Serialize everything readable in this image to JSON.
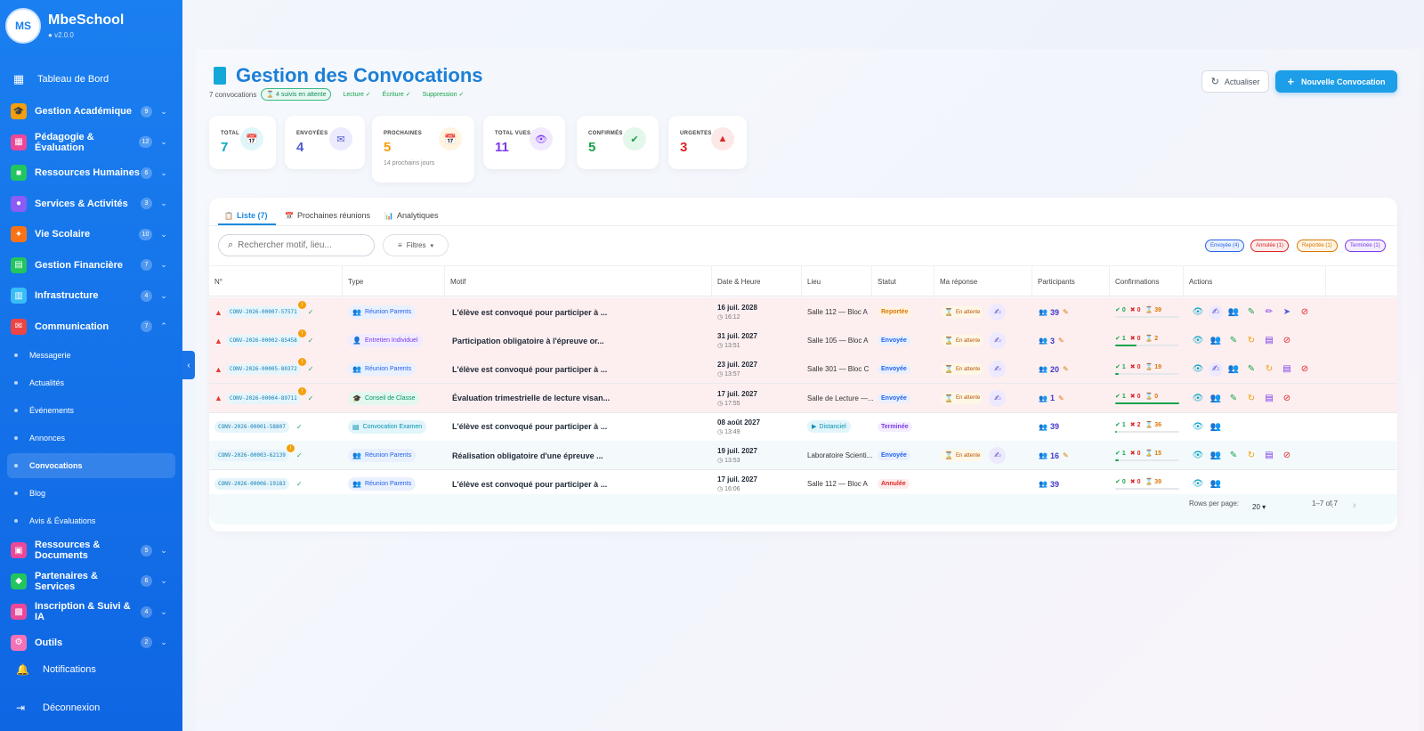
{
  "app": {
    "name": "MbeSchool",
    "version": "v2.0.0",
    "logo_text": "MS"
  },
  "sidebar": {
    "dashboard": "Tableau de Bord",
    "groups": [
      {
        "label": "Gestion Académique",
        "badge": "9",
        "color": "#f59e0b",
        "icon": "graduation-cap-icon",
        "glyph": "🎓"
      },
      {
        "label": "Pédagogie & Évaluation",
        "badge": "12",
        "color": "#ec4899",
        "icon": "grading-icon",
        "glyph": "▦"
      },
      {
        "label": "Ressources Humaines",
        "badge": "6",
        "color": "#22c55e",
        "icon": "briefcase-icon",
        "glyph": "■"
      },
      {
        "label": "Services & Activités",
        "badge": "3",
        "color": "#8b5cf6",
        "icon": "activities-icon",
        "glyph": "●"
      },
      {
        "label": "Vie Scolaire",
        "badge": "10",
        "color": "#f97316",
        "icon": "person-running-icon",
        "glyph": "✦"
      },
      {
        "label": "Gestion Financière",
        "badge": "7",
        "color": "#22c55e",
        "icon": "finance-icon",
        "glyph": "▤"
      },
      {
        "label": "Infrastructure",
        "badge": "4",
        "color": "#38bdf8",
        "icon": "building-icon",
        "glyph": "▥"
      },
      {
        "label": "Communication",
        "badge": "7",
        "color": "#ef4444",
        "icon": "mail-icon",
        "glyph": "✉"
      }
    ],
    "sub_items": [
      "Messagerie",
      "Actualités",
      "Événements",
      "Annonces",
      "Convocations",
      "Blog",
      "Avis & Évaluations"
    ],
    "active_sub": "Convocations",
    "groups_after": [
      {
        "label": "Ressources & Documents",
        "badge": "5",
        "color": "#ec4899",
        "icon": "folder-icon",
        "glyph": "▣"
      },
      {
        "label": "Partenaires & Services",
        "badge": "6",
        "color": "#22c55e",
        "icon": "handshake-icon",
        "glyph": "◆"
      },
      {
        "label": "Inscription & Suivi & IA",
        "badge": "4",
        "color": "#ec4899",
        "icon": "registration-icon",
        "glyph": "▩"
      },
      {
        "label": "Outils",
        "badge": "2",
        "color": "#f472b6",
        "icon": "gear-icon",
        "glyph": "⚙"
      }
    ],
    "notifications": "Notifications",
    "logout": "Déconnexion"
  },
  "header": {
    "title": "Gestion des Convocations",
    "count": "7 convocations",
    "follow": "4 suivis en attente",
    "perm_read": "Lecture ✓",
    "perm_write": "Écriture ✓",
    "perm_delete": "Suppression ✓",
    "refresh_label": "Actualiser",
    "new_label": "Nouvelle Convocation"
  },
  "stats": [
    {
      "label": "TOTAL",
      "value": "7",
      "color": "#0ea5c6",
      "icon_bg": "#e0f6fb",
      "icon": "calendar-icon",
      "glyph": "📅",
      "sub": ""
    },
    {
      "label": "ENVOYÉES",
      "value": "4",
      "color": "#4f5bd5",
      "icon_bg": "#ecebfd",
      "icon": "mail-icon",
      "glyph": "✉",
      "sub": ""
    },
    {
      "label": "PROCHAINES",
      "value": "5",
      "color": "#f59e0b",
      "icon_bg": "#fff4df",
      "icon": "calendar-icon",
      "glyph": "📅",
      "sub": "14 prochains jours"
    },
    {
      "label": "TOTAL VUES",
      "value": "11",
      "color": "#7c3aed",
      "icon_bg": "#f1eafe",
      "icon": "eye-icon",
      "glyph": "👁",
      "sub": ""
    },
    {
      "label": "CONFIRMÉS",
      "value": "5",
      "color": "#16a34a",
      "icon_bg": "#e3f7ea",
      "icon": "check-circle-icon",
      "glyph": "✔",
      "sub": ""
    },
    {
      "label": "URGENTES",
      "value": "3",
      "color": "#dc2626",
      "icon_bg": "#fde8e8",
      "icon": "warning-icon",
      "glyph": "▲",
      "sub": ""
    }
  ],
  "tabs": [
    "Liste (7)",
    "Prochaines réunions",
    "Analytiques"
  ],
  "search": {
    "placeholder": "Rechercher motif, lieu..."
  },
  "filters_label": "Filtres",
  "status_chips": [
    {
      "label": "Envoyée (4)",
      "color": "#2563eb",
      "bg": "#eaf1fe"
    },
    {
      "label": "Annulée (1)",
      "color": "#dc2626",
      "bg": "#fdecec"
    },
    {
      "label": "Reportée (1)",
      "color": "#d97706",
      "bg": "#fff5e3"
    },
    {
      "label": "Terminée (1)",
      "color": "#7c3aed",
      "bg": "#f3edfe"
    }
  ],
  "columns": [
    "N°",
    "Type",
    "Motif",
    "Date & Heure",
    "Lieu",
    "Statut",
    "Ma réponse",
    "Participants",
    "Confirmations",
    "Actions"
  ],
  "rows": [
    {
      "urgent": true,
      "code": "CONV-2026-00007-57571",
      "flag": "!",
      "type": "Réunion Parents",
      "type_icon": "group-icon",
      "type_color": "#2563eb",
      "type_bg": "#e9f0fe",
      "motif": "L'élève est convoqué pour participer à ...",
      "date": "16 juil. 2028",
      "time": "16:12",
      "lieu": "Salle 112 — Bloc A",
      "distanciel": false,
      "status": "Reportée",
      "status_color": "#d97706",
      "status_bg": "#fff3e0",
      "response": "En attente",
      "participants": "39",
      "conf": [
        "0",
        "0",
        "39"
      ],
      "conf_ratio": 0,
      "actions": [
        "view",
        "respond",
        "participants",
        "signature",
        "edit",
        "send",
        "cancel"
      ]
    },
    {
      "urgent": true,
      "code": "CONV-2026-00002-85458",
      "flag": "!",
      "type": "Entretien Individuel",
      "type_icon": "person-icon",
      "type_color": "#7c3aed",
      "type_bg": "#f1ebfe",
      "motif": "Participation obligatoire à l'épreuve or...",
      "date": "31 juil. 2027",
      "time": "13:51",
      "lieu": "Salle 105 — Bloc A",
      "distanciel": false,
      "status": "Envoyée",
      "status_color": "#2563eb",
      "status_bg": "#e8f0fe",
      "response": "En attente",
      "participants": "3",
      "conf": [
        "1",
        "0",
        "2"
      ],
      "conf_ratio": 0.33,
      "actions": [
        "view",
        "participants",
        "signature",
        "remind",
        "report",
        "cancel"
      ]
    },
    {
      "urgent": true,
      "code": "CONV-2026-00005-80372",
      "flag": "!",
      "type": "Réunion Parents",
      "type_icon": "group-icon",
      "type_color": "#2563eb",
      "type_bg": "#e9f0fe",
      "motif": "L'élève est convoqué pour participer à ...",
      "date": "23 juil. 2027",
      "time": "13:57",
      "lieu": "Salle 301 — Bloc C",
      "distanciel": false,
      "status": "Envoyée",
      "status_color": "#2563eb",
      "status_bg": "#e8f0fe",
      "response": "En attente",
      "participants": "20",
      "conf": [
        "1",
        "0",
        "19"
      ],
      "conf_ratio": 0.05,
      "actions": [
        "view",
        "respond",
        "participants",
        "signature",
        "remind",
        "report",
        "cancel"
      ]
    },
    {
      "urgent": true,
      "code": "CONV-2026-00004-89711",
      "flag": "!",
      "type": "Conseil de Classe",
      "type_icon": "graduation-cap-icon",
      "type_color": "#059669",
      "type_bg": "#e3f7ee",
      "motif": "Évaluation trimestrielle de lecture visan...",
      "date": "17 juil. 2027",
      "time": "17:55",
      "lieu": "Salle de Lecture —...",
      "distanciel": false,
      "status": "Envoyée",
      "status_color": "#2563eb",
      "status_bg": "#e8f0fe",
      "response": "En attente",
      "participants": "1",
      "conf": [
        "1",
        "0",
        "0"
      ],
      "conf_ratio": 1,
      "actions": [
        "view",
        "participants",
        "signature",
        "remind",
        "report",
        "cancel"
      ]
    },
    {
      "urgent": false,
      "code": "CONV-2026-00001-58807",
      "flag": "",
      "type": "Convocation Examen",
      "type_icon": "exam-icon",
      "type_color": "#0891b2",
      "type_bg": "#e1f5fa",
      "motif": "L'élève est convoqué pour participer à ...",
      "date": "08 août 2027",
      "time": "13:49",
      "lieu": "Distanciel",
      "distanciel": true,
      "status": "Terminée",
      "status_color": "#7c3aed",
      "status_bg": "#f3edfe",
      "response": "",
      "participants": "39",
      "conf": [
        "1",
        "2",
        "36"
      ],
      "conf_ratio": 0.03,
      "actions": [
        "view",
        "participants"
      ]
    },
    {
      "urgent": false,
      "code": "CONV-2026-00003-62139",
      "flag": "!",
      "type": "Réunion Parents",
      "type_icon": "group-icon",
      "type_color": "#2563eb",
      "type_bg": "#e9f0fe",
      "motif": "Réalisation obligatoire d'une épreuve ...",
      "date": "19 juil. 2027",
      "time": "13:53",
      "lieu": "Laboratoire Scienti...",
      "distanciel": false,
      "status": "Envoyée",
      "status_color": "#2563eb",
      "status_bg": "#e8f0fe",
      "response": "En attente",
      "participants": "16",
      "conf": [
        "1",
        "0",
        "15"
      ],
      "conf_ratio": 0.06,
      "actions": [
        "view",
        "participants",
        "signature",
        "remind",
        "report",
        "cancel"
      ]
    },
    {
      "urgent": false,
      "code": "CONV-2026-00006-19183",
      "flag": "",
      "type": "Réunion Parents",
      "type_icon": "group-icon",
      "type_color": "#2563eb",
      "type_bg": "#e9f0fe",
      "motif": "L'élève est convoqué pour participer à ...",
      "date": "17 juil. 2027",
      "time": "16:06",
      "lieu": "Salle 112 — Bloc A",
      "distanciel": false,
      "status": "Annulée",
      "status_color": "#dc2626",
      "status_bg": "#fdecec",
      "response": "",
      "participants": "39",
      "conf": [
        "0",
        "0",
        "39"
      ],
      "conf_ratio": 0,
      "actions": [
        "view",
        "participants"
      ]
    }
  ],
  "pagination": {
    "rows_per_page_label": "Rows per page:",
    "rows_per_page": "20",
    "range": "1–7 of 7"
  }
}
